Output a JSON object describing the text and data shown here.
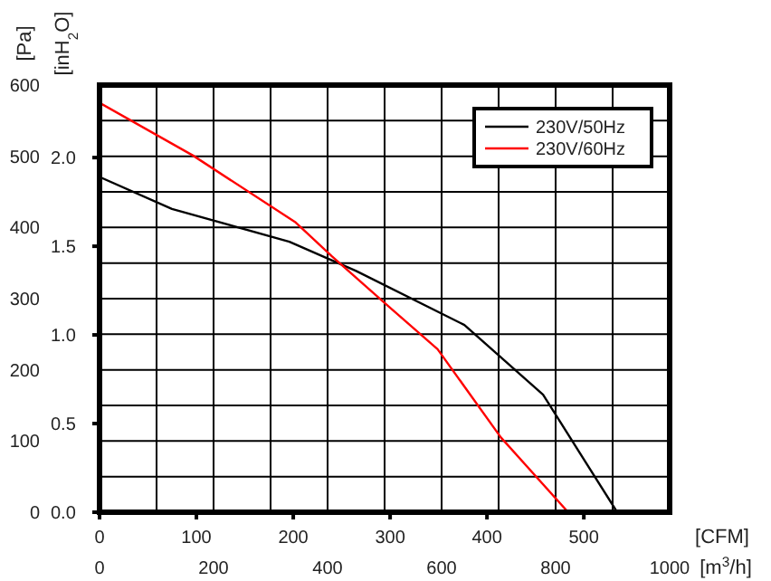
{
  "chart_data": {
    "type": "line",
    "ylabel": "[Pa]",
    "y2label": "[inH$_{2}$O]",
    "xlabel": "[m$^{3}$/h]",
    "x2label": "[CFM]",
    "series": [
      {
        "name": "230V/50Hz",
        "color": "#000000",
        "x": [
          0,
          127,
          333,
          450,
          640,
          778,
          908
        ],
        "values": [
          471,
          426,
          380,
          339,
          263,
          165,
          0
        ]
      },
      {
        "name": "230V/60Hz",
        "color": "#ff0000",
        "x": [
          0,
          164,
          344,
          407,
          503,
          593,
          704,
          822
        ],
        "values": [
          575,
          501,
          407,
          360,
          292,
          229,
          105,
          0
        ]
      }
    ],
    "xlim": [
      0,
      1000
    ],
    "xticks": [
      0,
      {
        "value": 100,
        "label": null
      },
      200,
      {
        "value": 300,
        "label": null
      },
      400,
      {
        "value": 500,
        "label": null
      },
      600,
      {
        "value": 700,
        "label": null
      },
      800,
      {
        "value": 900,
        "label": null
      },
      1000
    ],
    "x2lim": [
      0,
      588.6
    ],
    "x2ticks": [
      0,
      100,
      200,
      300,
      400,
      500
    ],
    "ylim": [
      0,
      600
    ],
    "yticks": [
      0,
      {
        "value": 50,
        "label": null
      },
      100,
      {
        "value": 150,
        "label": null
      },
      200,
      {
        "value": 250,
        "label": null
      },
      300,
      {
        "value": 350,
        "label": null
      },
      400,
      {
        "value": 450,
        "label": null
      },
      500,
      {
        "value": 550,
        "label": null
      },
      600
    ],
    "y2lim": [
      0,
      2.409
    ],
    "y2ticks": [
      {
        "value": 0,
        "label": "0.0"
      },
      0.5,
      {
        "value": 1,
        "label": "1.0"
      },
      1.5,
      {
        "value": 2,
        "label": "2.0"
      }
    ],
    "grid": true,
    "legend": "top right",
    "marker": "none",
    "line_style": "solid"
  }
}
